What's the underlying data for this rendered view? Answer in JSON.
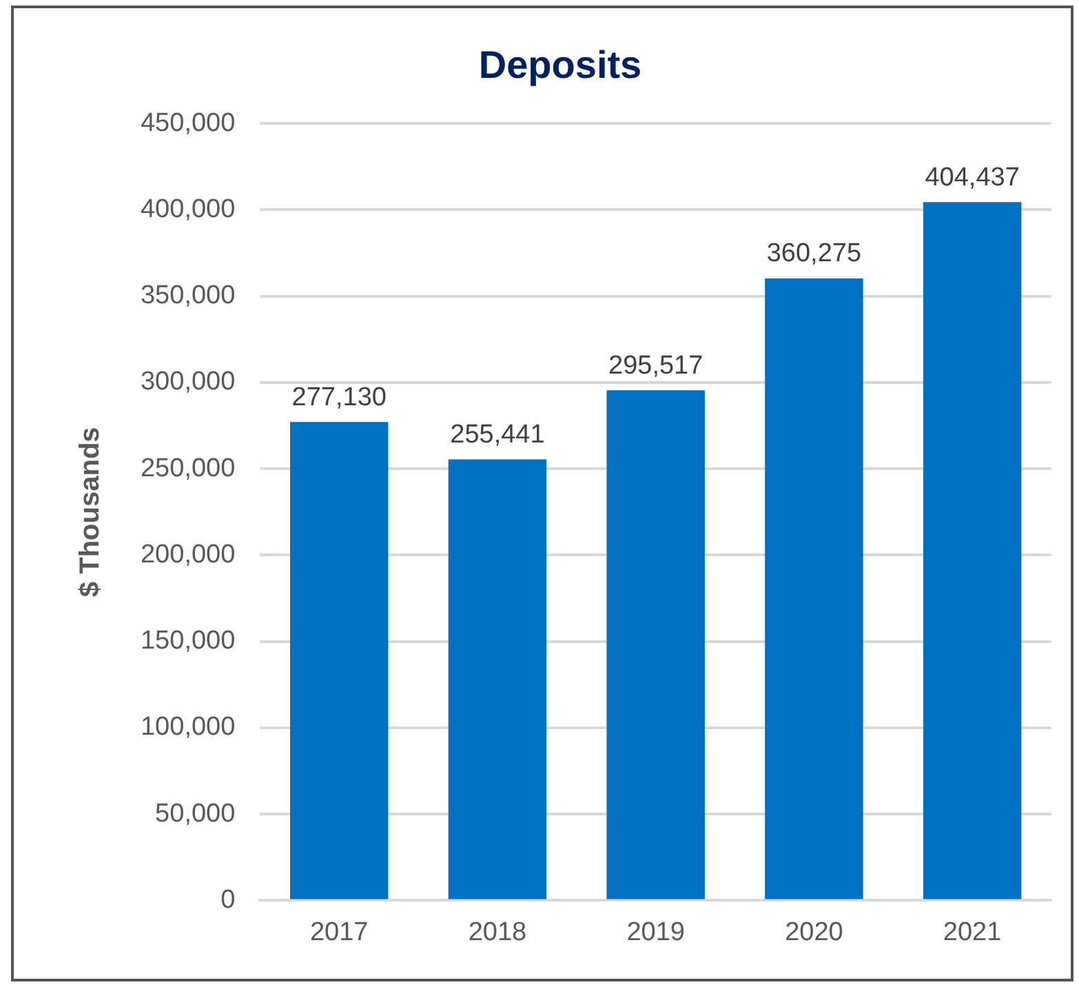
{
  "chart_data": {
    "type": "bar",
    "title": "Deposits",
    "ylabel": "$ Thousands",
    "categories": [
      "2017",
      "2018",
      "2019",
      "2020",
      "2021"
    ],
    "values": [
      277130,
      255441,
      295517,
      360275,
      404437
    ],
    "value_labels": [
      "277,130",
      "255,441",
      "295,517",
      "360,275",
      "404,437"
    ],
    "color": "#0070c0",
    "ylim": [
      0,
      450000
    ],
    "yticks": [
      {
        "value": 0,
        "label": "0"
      },
      {
        "value": 50000,
        "label": "50,000"
      },
      {
        "value": 100000,
        "label": "100,000"
      },
      {
        "value": 150000,
        "label": "150,000"
      },
      {
        "value": 200000,
        "label": "200,000"
      },
      {
        "value": 250000,
        "label": "250,000"
      },
      {
        "value": 300000,
        "label": "300,000"
      },
      {
        "value": 350000,
        "label": "350,000"
      },
      {
        "value": 400000,
        "label": "400,000"
      },
      {
        "value": 450000,
        "label": "450,000"
      }
    ],
    "grid": "y",
    "legend": false
  }
}
